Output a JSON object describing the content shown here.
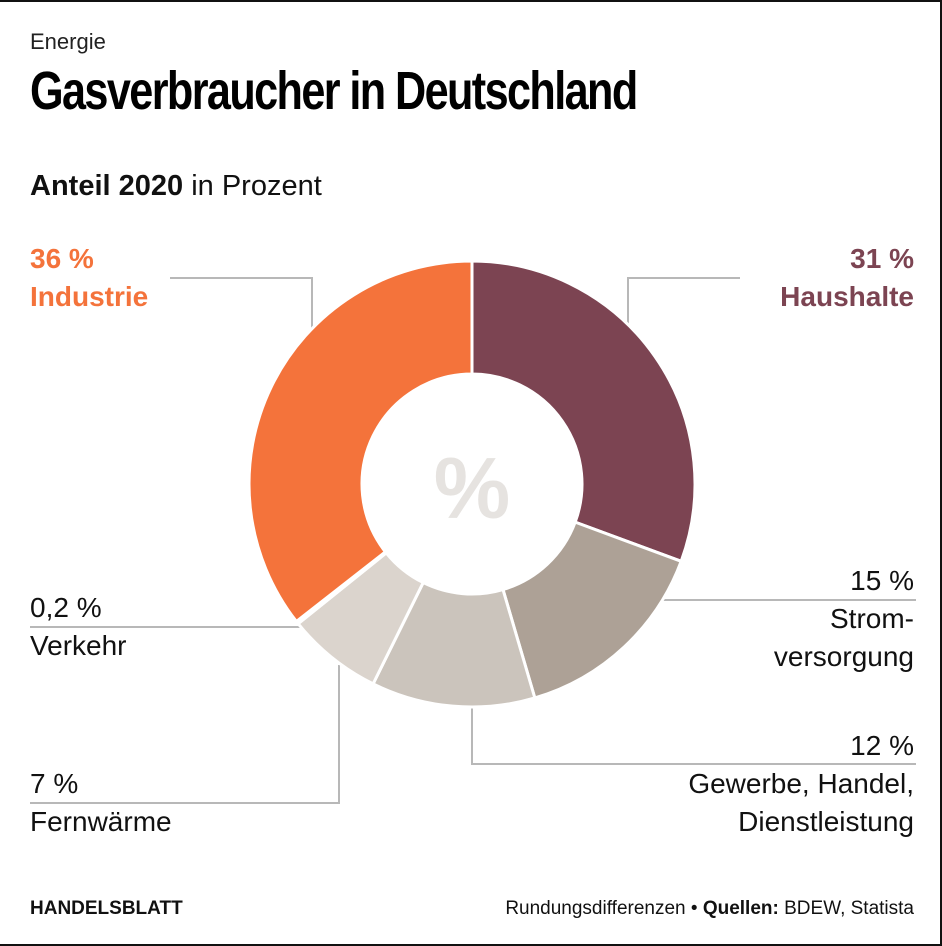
{
  "header": {
    "kicker": "Energie",
    "title": "Gasverbraucher in Deutschland",
    "subtitle_bold": "Anteil 2020",
    "subtitle_rest": " in Prozent"
  },
  "chart_data": {
    "type": "pie",
    "variant": "donut",
    "title": "Gasverbraucher in Deutschland",
    "subtitle": "Anteil 2020 in Prozent",
    "center_symbol": "%",
    "slices": [
      {
        "key": "haushalte",
        "label": "Haushalte",
        "value": 31,
        "value_label": "31 %",
        "color": "#7c4452"
      },
      {
        "key": "stromversorgung",
        "label": "Strom-versorgung",
        "value": 15,
        "value_label": "15 %",
        "color": "#ada196"
      },
      {
        "key": "gewerbe",
        "label": "Gewerbe, Handel, Dienstleistung",
        "value": 12,
        "value_label": "12 %",
        "color": "#cbc4bc"
      },
      {
        "key": "fernwaerme",
        "label": "Fernwärme",
        "value": 7,
        "value_label": "7 %",
        "color": "#dbd4cd"
      },
      {
        "key": "verkehr",
        "label": "Verkehr",
        "value": 0.2,
        "value_label": "0,2 %",
        "color": "#ebe6e1"
      },
      {
        "key": "industrie",
        "label": "Industrie",
        "value": 36,
        "value_label": "36 %",
        "color": "#f4733b"
      }
    ],
    "note": "Rundungsdifferenzen"
  },
  "labels": {
    "industrie": {
      "value": "36 %",
      "name": "Industrie"
    },
    "haushalte": {
      "value": "31 %",
      "name": "Haushalte"
    },
    "stromversorgung": {
      "value": "15 %",
      "line1": "Strom-",
      "line2": "versorgung"
    },
    "gewerbe": {
      "value": "12 %",
      "line1": "Gewerbe, Handel,",
      "line2": "Dienstleistung"
    },
    "verkehr": {
      "value": "0,2 %",
      "name": "Verkehr"
    },
    "fernwaerme": {
      "value": "7 %",
      "name": "Fernwärme"
    }
  },
  "footer": {
    "brand": "HANDELSBLATT",
    "note": "Rundungsdifferenzen",
    "bullet": " • ",
    "sources_label": "Quellen:",
    "sources": " BDEW, Statista"
  },
  "colors": {
    "industrie": "#f4733b",
    "haushalte": "#7c4452",
    "leader": "#b8b8b8",
    "center_symbol": "#e6e3e0"
  }
}
